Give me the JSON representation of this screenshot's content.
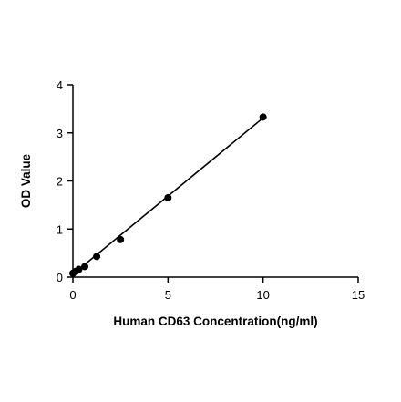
{
  "chart_data": {
    "type": "scatter",
    "title": "",
    "xlabel": "Human CD63 Concentration(ng/ml)",
    "ylabel": "OD Value",
    "xlim": [
      0,
      15
    ],
    "ylim": [
      0,
      4
    ],
    "xticks": [
      0,
      5,
      10,
      15
    ],
    "yticks": [
      0,
      1,
      2,
      3,
      4
    ],
    "grid": false,
    "legend": "none",
    "series": [
      {
        "points": [
          {
            "x": 0,
            "y": 0.08
          },
          {
            "x": 0.156,
            "y": 0.12
          },
          {
            "x": 0.3125,
            "y": 0.16
          },
          {
            "x": 0.625,
            "y": 0.22
          },
          {
            "x": 1.25,
            "y": 0.43
          },
          {
            "x": 2.5,
            "y": 0.78
          },
          {
            "x": 5,
            "y": 1.65
          },
          {
            "x": 10,
            "y": 3.33
          }
        ],
        "fit_line": {
          "x_start": 0,
          "y_start": 0.06,
          "x_end": 10,
          "y_end": 3.31
        },
        "color": "#000000"
      }
    ]
  }
}
